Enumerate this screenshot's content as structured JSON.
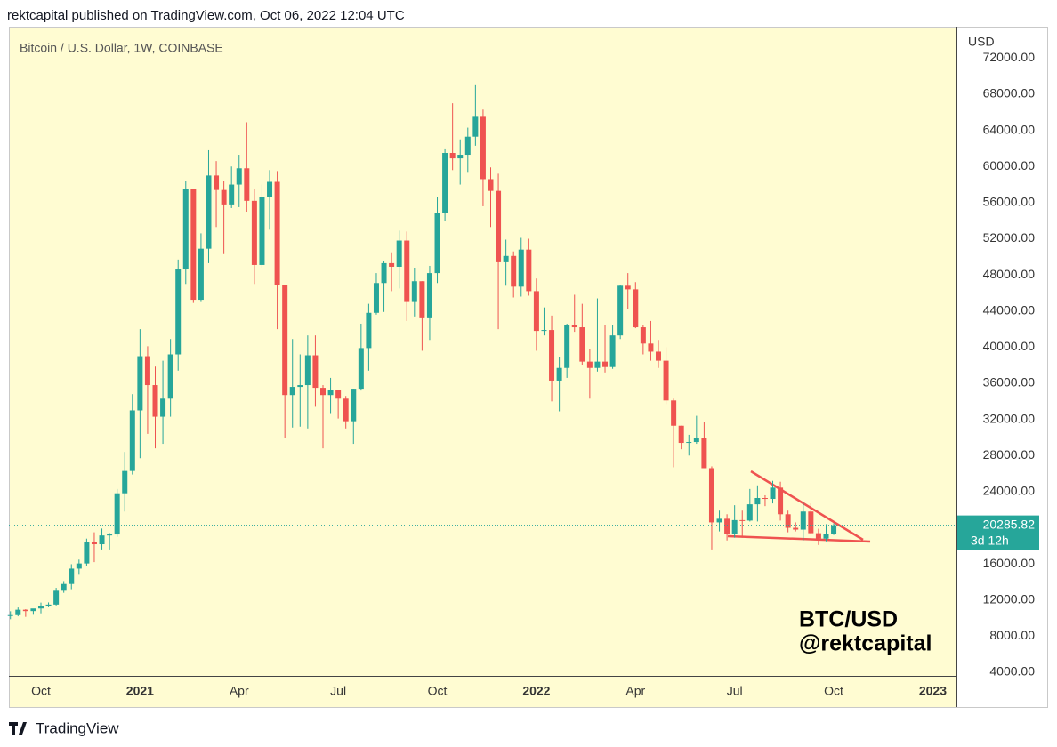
{
  "header": "rektcapital published on TradingView.com, Oct 06, 2022 12:04 UTC",
  "footer": "TradingView",
  "chart_data": {
    "type": "candlestick",
    "title": "Bitcoin / U.S. Dollar, 1W, COINBASE",
    "currency": "USD",
    "watermark": [
      "BTC/USD",
      "@rektcapital"
    ],
    "countdown": "3d 12h",
    "up_color": "#26a69a",
    "down_color": "#ef5350",
    "open": [
      10280,
      10330,
      10930,
      10780,
      11070,
      11370,
      11500,
      13030,
      13780,
      15480,
      16050,
      18400,
      18180,
      19150,
      19260,
      23820,
      26290,
      33000,
      39000,
      35800,
      32300,
      34300,
      39200,
      48600,
      57500,
      45250,
      50900,
      59000,
      57400,
      55800,
      58000,
      59800,
      56200,
      49100,
      56600,
      58300,
      46900,
      34700,
      35600,
      35800,
      39100,
      35500,
      34700,
      35300,
      34300,
      31800,
      35400,
      39900,
      43800,
      47100,
      49300,
      48900,
      51800,
      45000,
      47300,
      43200,
      48200,
      54900,
      61500,
      60900,
      61300,
      63300,
      65500,
      58600,
      57300,
      49400,
      50100,
      46700,
      50800,
      46200,
      41800,
      41900,
      36300,
      37700,
      42400,
      42200,
      38400,
      37700,
      38400,
      37800,
      41300,
      46800,
      46400,
      42200,
      40400,
      39500,
      38500,
      34100,
      31300,
      29400,
      29500,
      29900,
      26600,
      20600,
      21000,
      19300,
      20850,
      20800,
      22600,
      23300,
      23200,
      24450,
      21500,
      20000,
      19800,
      21800,
      19400,
      18800,
      19300
    ],
    "high": [
      10760,
      11180,
      10990,
      10950,
      11720,
      11740,
      13350,
      14100,
      15970,
      16480,
      18800,
      19500,
      19920,
      19420,
      24300,
      28400,
      34800,
      42000,
      40100,
      37850,
      38500,
      40900,
      49700,
      58350,
      57500,
      52600,
      61800,
      60600,
      58400,
      60000,
      61300,
      64900,
      57500,
      58000,
      59600,
      59500,
      46900,
      40900,
      39200,
      41300,
      41300,
      35800,
      36600,
      35300,
      34600,
      35400,
      42600,
      44800,
      48200,
      49500,
      50500,
      52900,
      52800,
      48800,
      47300,
      49000,
      56600,
      62000,
      67000,
      63000,
      64300,
      69000,
      66300,
      59900,
      59200,
      51900,
      50600,
      52100,
      52000,
      47600,
      44400,
      43500,
      38900,
      42600,
      45800,
      44800,
      39800,
      45400,
      42500,
      42400,
      46900,
      48200,
      47200,
      42400,
      42900,
      40800,
      40000,
      34300,
      31300,
      30300,
      32400,
      31700,
      26800,
      21900,
      21500,
      22500,
      21900,
      24300,
      24700,
      23600,
      25200,
      25100,
      21900,
      20600,
      22800,
      22700,
      19900,
      20400,
      20500
    ],
    "low": [
      9880,
      10200,
      10140,
      10370,
      10530,
      11200,
      11400,
      12800,
      13200,
      14800,
      15790,
      16200,
      17600,
      17600,
      19000,
      21800,
      25900,
      27700,
      30400,
      28800,
      29300,
      32300,
      37400,
      47000,
      44900,
      45000,
      49300,
      53300,
      50300,
      55400,
      55500,
      55000,
      47000,
      48800,
      53000,
      42000,
      30000,
      31100,
      31200,
      31000,
      33400,
      28800,
      32700,
      32100,
      31000,
      29300,
      35200,
      37400,
      43600,
      43900,
      46200,
      46500,
      42900,
      43400,
      39600,
      40800,
      47100,
      54000,
      59600,
      58000,
      59400,
      62300,
      55600,
      53300,
      42000,
      46800,
      45500,
      45600,
      45700,
      39600,
      41300,
      34000,
      32900,
      36600,
      41700,
      38000,
      34300,
      37300,
      37200,
      37600,
      40900,
      44200,
      42100,
      39200,
      38500,
      37700,
      33700,
      26700,
      28700,
      28000,
      29300,
      26600,
      17600,
      19600,
      18600,
      18900,
      18900,
      20700,
      20700,
      22400,
      22700,
      20800,
      19500,
      19600,
      18600,
      19300,
      18100,
      18500,
      19200
    ],
    "close": [
      10330,
      10930,
      10780,
      11070,
      11370,
      11500,
      13030,
      13780,
      15480,
      16050,
      18400,
      18180,
      19150,
      19260,
      23820,
      26290,
      33000,
      39000,
      35800,
      32300,
      34300,
      39200,
      48600,
      57500,
      45250,
      50900,
      59000,
      57400,
      55800,
      58000,
      59800,
      56200,
      49100,
      56600,
      58300,
      46900,
      34700,
      35600,
      35800,
      39100,
      35500,
      34700,
      35300,
      34300,
      31800,
      35400,
      39900,
      43800,
      47100,
      49300,
      48900,
      51800,
      45000,
      47300,
      43200,
      48200,
      54900,
      61500,
      60900,
      61300,
      63300,
      65500,
      58600,
      57300,
      49400,
      50100,
      46700,
      50800,
      46200,
      41800,
      41900,
      36300,
      37700,
      42400,
      42200,
      38400,
      37700,
      38400,
      37800,
      41300,
      46800,
      46400,
      42200,
      40400,
      39500,
      38500,
      34100,
      31300,
      29400,
      29500,
      29900,
      26600,
      20600,
      21000,
      19300,
      20850,
      20800,
      22600,
      23300,
      23200,
      24450,
      21500,
      20000,
      19800,
      21800,
      19400,
      18800,
      19300,
      20285.82
    ],
    "xlim": [
      -0.2,
      124.1
    ],
    "xticks": [
      {
        "value": 4,
        "label": "Oct"
      },
      {
        "value": 17,
        "label": "2021"
      },
      {
        "value": 30,
        "label": "Apr"
      },
      {
        "value": 43,
        "label": "Jul"
      },
      {
        "value": 56,
        "label": "Oct"
      },
      {
        "value": 69,
        "label": "2022"
      },
      {
        "value": 82,
        "label": "Apr"
      },
      {
        "value": 95,
        "label": "Jul"
      },
      {
        "value": 108,
        "label": "Oct"
      },
      {
        "value": 121,
        "label": "2023"
      }
    ],
    "ylim": [
      3610,
      75480
    ],
    "yticks": [
      {
        "value": 72000,
        "label": "72000.00"
      },
      {
        "value": 68000,
        "label": "68000.00"
      },
      {
        "value": 64000,
        "label": "64000.00"
      },
      {
        "value": 60000,
        "label": "60000.00"
      },
      {
        "value": 56000,
        "label": "56000.00"
      },
      {
        "value": 52000,
        "label": "52000.00"
      },
      {
        "value": 48000,
        "label": "48000.00"
      },
      {
        "value": 44000,
        "label": "44000.00"
      },
      {
        "value": 40000,
        "label": "40000.00"
      },
      {
        "value": 36000,
        "label": "36000.00"
      },
      {
        "value": 32000,
        "label": "32000.00"
      },
      {
        "value": 28000,
        "label": "28000.00"
      },
      {
        "value": 24000,
        "label": "24000.00"
      },
      {
        "value": 16000,
        "label": "16000.00"
      },
      {
        "value": 12000,
        "label": "12000.00"
      },
      {
        "value": 8000,
        "label": "8000.00"
      },
      {
        "value": 4000,
        "label": "4000.00"
      }
    ]
  }
}
